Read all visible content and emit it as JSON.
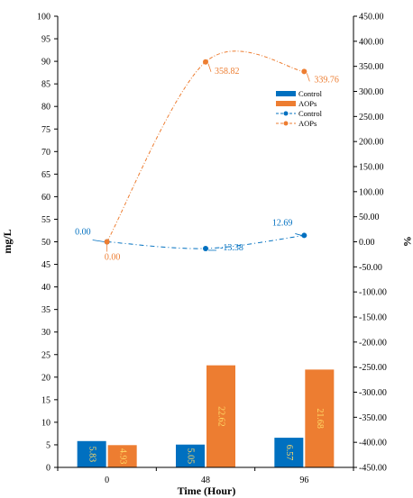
{
  "chart_data": {
    "type": "bar+line",
    "categories": [
      "0",
      "48",
      "96"
    ],
    "xlabel": "Time (Hour)",
    "ylabel": "mg/L",
    "y2label": "%",
    "ylim": [
      0,
      100
    ],
    "y_ticks": [
      "0",
      "5",
      "10",
      "15",
      "20",
      "25",
      "30",
      "35",
      "40",
      "45",
      "50",
      "55",
      "60",
      "65",
      "70",
      "75",
      "80",
      "85",
      "90",
      "95",
      "100"
    ],
    "y2lim": [
      -450,
      450
    ],
    "y2_ticks": [
      "-450.00",
      "-400.00",
      "-350.00",
      "-300.00",
      "-250.00",
      "-200.00",
      "-150.00",
      "-100.00",
      "-50.00",
      "0.00",
      "50.00",
      "100.00",
      "150.00",
      "200.00",
      "250.00",
      "300.00",
      "350.00",
      "400.00",
      "450.00"
    ],
    "bar_series": [
      {
        "name": "Control",
        "values": [
          5.83,
          5.05,
          6.57
        ],
        "labels": [
          "5.83",
          "5.05",
          "6.57"
        ],
        "color": "#0070C0",
        "label_color": "#FFD966"
      },
      {
        "name": "AOPs",
        "values": [
          4.93,
          22.62,
          21.68
        ],
        "labels": [
          "4.93",
          "22.62",
          "21.68"
        ],
        "color": "#ED7D31",
        "label_color": "#FFD966"
      }
    ],
    "line_series": [
      {
        "name": "Control",
        "axis": "right",
        "values": [
          0.0,
          -13.38,
          12.69
        ],
        "labels": [
          "0.00",
          "-13.38",
          "12.69"
        ],
        "color": "#0070C0"
      },
      {
        "name": "AOPs",
        "axis": "right",
        "values": [
          0.0,
          358.82,
          339.76
        ],
        "labels": [
          "0.00",
          "358.82",
          "339.76"
        ],
        "color": "#ED7D31"
      }
    ],
    "legend": {
      "position": "top-right",
      "entries": [
        "Control",
        "AOPs",
        "Control",
        "AOPs"
      ]
    },
    "grid": false
  }
}
